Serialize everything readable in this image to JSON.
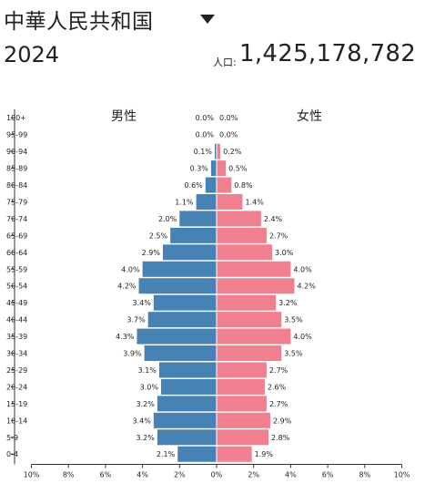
{
  "header": {
    "country": "中華人民共和国",
    "year": "2024",
    "population_label": "人口:",
    "population": "1,425,178,782"
  },
  "chart_data": {
    "type": "bar",
    "subtype": "population-pyramid",
    "categories": [
      "100+",
      "95-99",
      "90-94",
      "85-89",
      "80-84",
      "75-79",
      "70-74",
      "65-69",
      "60-64",
      "55-59",
      "50-54",
      "45-49",
      "40-44",
      "35-39",
      "30-34",
      "25-29",
      "20-24",
      "15-19",
      "10-14",
      "5-9",
      "0-4"
    ],
    "series": [
      {
        "name": "男性",
        "color": "#4682b4",
        "values": [
          0.0,
          0.0,
          0.1,
          0.3,
          0.6,
          1.1,
          2.0,
          2.5,
          2.9,
          4.0,
          4.2,
          3.4,
          3.7,
          4.3,
          3.9,
          3.1,
          3.0,
          3.2,
          3.4,
          3.2,
          2.1
        ]
      },
      {
        "name": "女性",
        "color": "#f08090",
        "values": [
          0.0,
          0.0,
          0.2,
          0.5,
          0.8,
          1.4,
          2.4,
          2.7,
          3.0,
          4.0,
          4.2,
          3.2,
          3.5,
          4.0,
          3.5,
          2.7,
          2.6,
          2.7,
          2.9,
          2.8,
          1.9
        ]
      }
    ],
    "value_suffix": "%",
    "x_ticks": [
      "10%",
      "8%",
      "6%",
      "4%",
      "2%",
      "0%",
      "2%",
      "4%",
      "6%",
      "8%",
      "10%"
    ],
    "xlim": [
      -10,
      10
    ]
  }
}
